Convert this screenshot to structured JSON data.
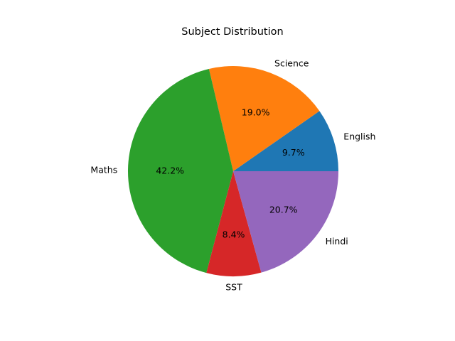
{
  "chart_data": {
    "type": "pie",
    "title": "Subject Distribution",
    "slices": [
      {
        "label": "English",
        "percent": 9.7,
        "pct_text": "9.7%",
        "color": "#1f77b4"
      },
      {
        "label": "Science",
        "percent": 19.0,
        "pct_text": "19.0%",
        "color": "#ff7f0e"
      },
      {
        "label": "Maths",
        "percent": 42.2,
        "pct_text": "42.2%",
        "color": "#2ca02c"
      },
      {
        "label": "SST",
        "percent": 8.4,
        "pct_text": "8.4%",
        "color": "#d62728"
      },
      {
        "label": "Hindi",
        "percent": 20.7,
        "pct_text": "20.7%",
        "color": "#9467bd"
      }
    ],
    "start_angle_deg": 0,
    "direction": "counterclockwise",
    "legend": "none",
    "grid": false
  }
}
